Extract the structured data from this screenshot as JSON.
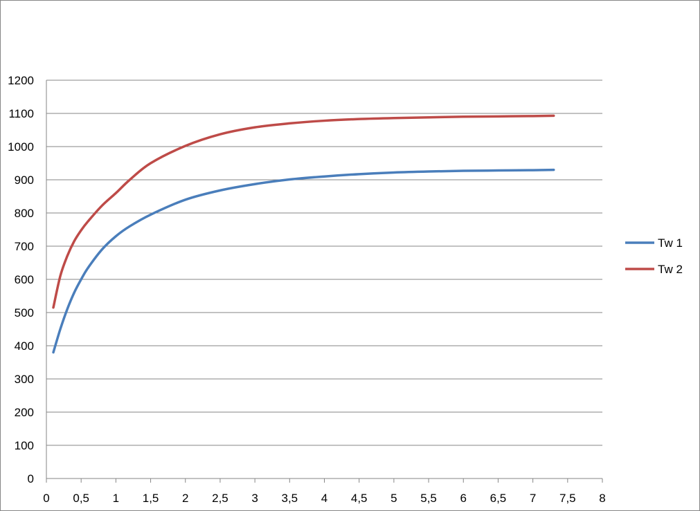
{
  "chart_data": {
    "type": "line",
    "title": "",
    "xlabel": "",
    "ylabel": "",
    "xlim": [
      0,
      8
    ],
    "ylim": [
      0,
      1200
    ],
    "x_ticks": [
      "0",
      "0,5",
      "1",
      "1,5",
      "2",
      "2,5",
      "3",
      "3,5",
      "4",
      "4,5",
      "5",
      "5,5",
      "6",
      "6,5",
      "7",
      "7,5",
      "8"
    ],
    "y_ticks": [
      "0",
      "100",
      "200",
      "300",
      "400",
      "500",
      "600",
      "700",
      "800",
      "900",
      "1000",
      "1100",
      "1200"
    ],
    "grid": "horizontal",
    "legend_position": "right",
    "x": [
      0.1,
      0.2,
      0.3,
      0.4,
      0.5,
      0.6,
      0.8,
      1.0,
      1.2,
      1.5,
      2.0,
      2.5,
      3.0,
      3.5,
      4.0,
      4.5,
      5.0,
      5.5,
      6.0,
      6.5,
      7.0,
      7.3
    ],
    "series": [
      {
        "name": "Tw 1",
        "color": "#4a7ebb",
        "values": [
          380,
          450,
          510,
          560,
          600,
          635,
          690,
          730,
          760,
          795,
          840,
          868,
          887,
          901,
          910,
          917,
          922,
          925,
          927,
          928,
          929,
          930
        ]
      },
      {
        "name": "Tw 2",
        "color": "#be4b48",
        "values": [
          515,
          610,
          670,
          715,
          748,
          775,
          822,
          860,
          900,
          950,
          1002,
          1037,
          1058,
          1070,
          1078,
          1083,
          1086,
          1088,
          1090,
          1091,
          1092,
          1093
        ]
      }
    ]
  }
}
